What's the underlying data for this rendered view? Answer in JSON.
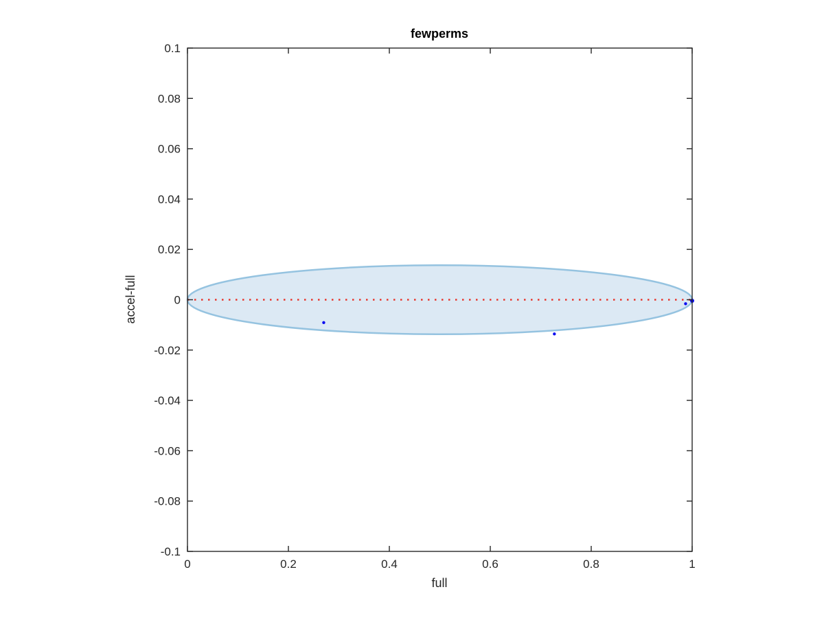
{
  "figure": {
    "background": "#ffffff",
    "axis_color": "#262626",
    "tick_direction": "in",
    "box": true,
    "grid": false
  },
  "chart_data": {
    "type": "scatter",
    "title": "fewperms",
    "xlabel": "full",
    "ylabel": "accel-full",
    "xlim": [
      0,
      1
    ],
    "ylim": [
      -0.1,
      0.1
    ],
    "xticks": [
      0,
      0.2,
      0.4,
      0.6,
      0.8,
      1
    ],
    "xtick_labels": [
      "0",
      "0.2",
      "0.4",
      "0.6",
      "0.8",
      "1"
    ],
    "yticks": [
      0.1,
      0.08,
      0.06,
      0.04,
      0.02,
      0,
      -0.02,
      -0.04,
      -0.06,
      -0.08,
      -0.1
    ],
    "ytick_labels": [
      "0.1",
      "0.08",
      "0.06",
      "0.04",
      "0.02",
      "0",
      "-0.02",
      "-0.04",
      "-0.06",
      "-0.08",
      "-0.1"
    ],
    "legend": null,
    "ellipse": {
      "cx": 0.5,
      "cy": 0.0,
      "rx": 0.5,
      "ry": 0.0137,
      "fill": "#dce9f4",
      "stroke": "#95c3e0",
      "stroke_width": 2.5
    },
    "zero_line": {
      "y": 0,
      "x_start": 0,
      "x_end": 1,
      "style": "dotted",
      "color": "#e8362c",
      "width": 2.5
    },
    "points": {
      "color": "#0a0af0",
      "marker": "dot",
      "data": [
        {
          "x": 0.27,
          "y": -0.0091,
          "size": 2.2
        },
        {
          "x": 0.727,
          "y": -0.0136,
          "size": 2.2
        },
        {
          "x": 0.987,
          "y": -0.0016,
          "size": 2.2
        },
        {
          "x": 1.0,
          "y": -0.0004,
          "size": 3.0
        }
      ]
    }
  }
}
